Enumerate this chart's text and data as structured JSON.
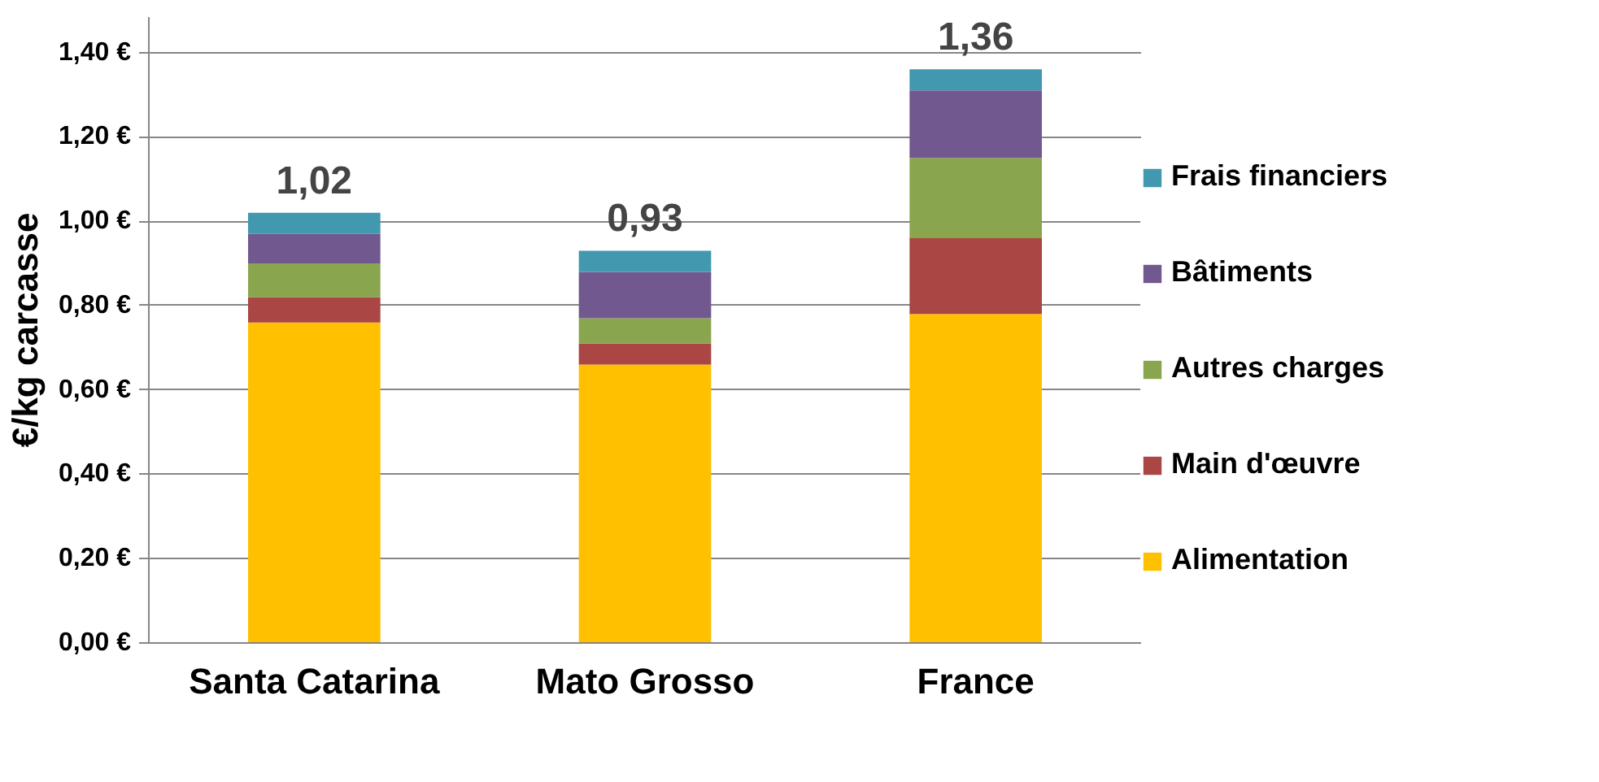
{
  "chart_data": {
    "type": "bar",
    "stacked": true,
    "ylabel": "€/kg carcasse",
    "categories": [
      "Santa Catarina",
      "Mato Grosso",
      "France"
    ],
    "series": [
      {
        "name": "Alimentation",
        "color": "#ffc000",
        "values": [
          0.76,
          0.66,
          0.78
        ]
      },
      {
        "name": "Main d'œuvre",
        "color": "#aa4643",
        "values": [
          0.06,
          0.05,
          0.18
        ]
      },
      {
        "name": "Autres charges",
        "color": "#89a54e",
        "values": [
          0.08,
          0.06,
          0.19
        ]
      },
      {
        "name": "Bâtiments",
        "color": "#71588f",
        "values": [
          0.07,
          0.11,
          0.16
        ]
      },
      {
        "name": "Frais financiers",
        "color": "#4198af",
        "values": [
          0.05,
          0.05,
          0.05
        ]
      }
    ],
    "totals": [
      "1,02",
      "0,93",
      "1,36"
    ],
    "ylim": [
      0,
      1.4
    ],
    "yticks": [
      {
        "value": 0,
        "label": "0,00 €"
      },
      {
        "value": 0.2,
        "label": "0,20 €"
      },
      {
        "value": 0.4,
        "label": "0,40 €"
      },
      {
        "value": 0.6,
        "label": "0,60 €"
      },
      {
        "value": 0.8,
        "label": "0,80 €"
      },
      {
        "value": 1.0,
        "label": "1,00 €"
      },
      {
        "value": 1.2,
        "label": "1,20 €"
      },
      {
        "value": 1.4,
        "label": "1,40 €"
      }
    ],
    "grid": "y",
    "legend": "right"
  }
}
